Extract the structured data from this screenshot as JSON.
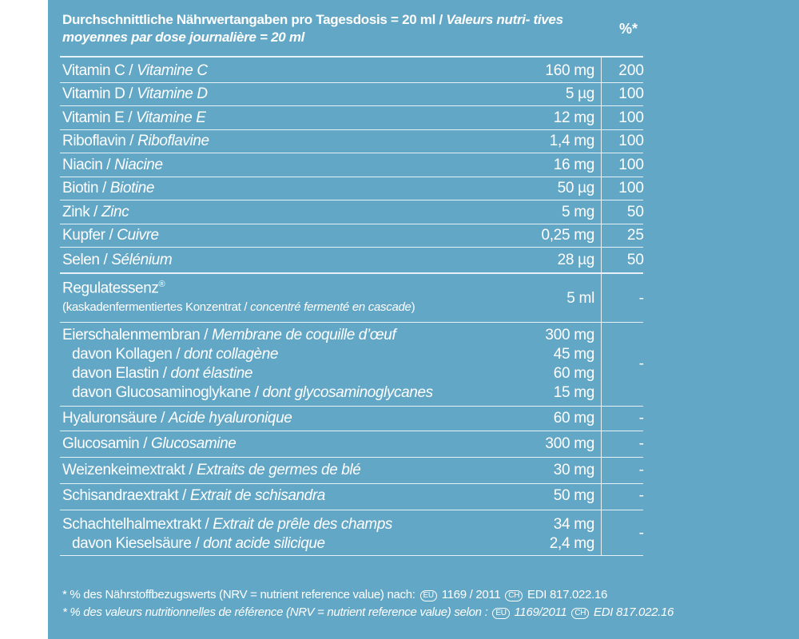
{
  "header": {
    "de": "Durchschnittliche Nährwertangaben pro Tagesdosis = 20 ml / ",
    "fr": "Valeurs nutri- tives moyennes par dose journalière = 20 ml",
    "pct_label": "%*"
  },
  "rows": [
    {
      "de": "Vitamin C / ",
      "fr": "Vitamine C",
      "amount": "160 mg",
      "pct": "200"
    },
    {
      "de": "Vitamin D / ",
      "fr": "Vitamine D",
      "amount": "5 µg",
      "pct": "100"
    },
    {
      "de": "Vitamin E / ",
      "fr": "Vitamine E",
      "amount": "12 mg",
      "pct": "100"
    },
    {
      "de": "Riboflavin / ",
      "fr": "Riboflavine",
      "amount": "1,4 mg",
      "pct": "100"
    },
    {
      "de": "Niacin / ",
      "fr": "Niacine",
      "amount": "16 mg",
      "pct": "100"
    },
    {
      "de": "Biotin / ",
      "fr": "Biotine",
      "amount": "50 µg",
      "pct": "100"
    },
    {
      "de": "Zink / ",
      "fr": "Zinc",
      "amount": "5 mg",
      "pct": "50"
    },
    {
      "de": "Kupfer / ",
      "fr": "Cuivre",
      "amount": "0,25 mg",
      "pct": "25"
    },
    {
      "de": "Selen / ",
      "fr": "Sélénium",
      "amount": "28 µg",
      "pct": "50"
    }
  ],
  "regulat": {
    "name": "Regulatessenz",
    "sup": "®",
    "note_de": "(kaskadenfermentiertes Konzentrat / ",
    "note_fr": "concentré fermenté en cascade",
    "note_end": ")",
    "amount": "5 ml",
    "pct": "-"
  },
  "egg": {
    "de": "Eierschalenmembran / ",
    "fr": "Membrane de coquille d’œuf",
    "amount": "300 mg",
    "pct": "-",
    "subs": [
      {
        "de": "davon Kollagen / ",
        "fr": "dont collagène",
        "amount": "45 mg"
      },
      {
        "de": "davon Elastin / ",
        "fr": "dont élastine",
        "amount": "60 mg"
      },
      {
        "de": "davon Glucosaminoglykane / ",
        "fr": "dont glycosaminoglycanes",
        "amount": "15 mg"
      }
    ]
  },
  "rows2": [
    {
      "de": "Hyaluronsäure / ",
      "fr": "Acide hyaluronique",
      "amount": "60 mg",
      "pct": "-"
    },
    {
      "de": "Glucosamin / ",
      "fr": "Glucosamine",
      "amount": "300 mg",
      "pct": "-"
    },
    {
      "de": "Weizenkeimextrakt / ",
      "fr": "Extraits de germes de blé",
      "amount": "30 mg",
      "pct": "-"
    },
    {
      "de": "Schisandraextrakt / ",
      "fr": "Extrait de schisandra",
      "amount": "50 mg",
      "pct": "-"
    }
  ],
  "horse": {
    "de": "Schachtelhalmextrakt / ",
    "fr": "Extrait de prêle des champs",
    "amount": "34 mg",
    "pct": "-",
    "sub": {
      "de": "davon Kieselsäure / ",
      "fr": "dont acide silicique",
      "amount": "2,4 mg"
    }
  },
  "footer": {
    "de_text": "* % des Nährstoffbezugswerts (NRV = nutrient reference value) nach:",
    "de_eu_badge": "EU",
    "de_eu": " 1169 / 2011 ",
    "de_ch_badge": "CH",
    "de_ch": " EDI 817.022.16",
    "fr_text": "* % des valeurs nutritionnelles de référence (NRV = nutrient reference value) selon :",
    "fr_eu_badge": "EU",
    "fr_eu": " 1169/2011 ",
    "fr_ch_badge": "CH",
    "fr_ch": " EDI 817.022.16"
  }
}
